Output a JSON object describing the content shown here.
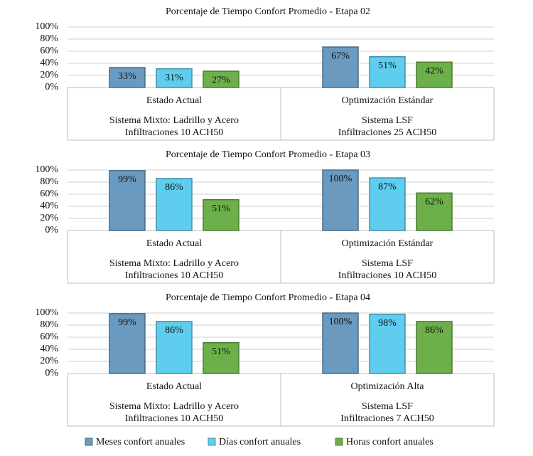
{
  "chart_data": [
    {
      "type": "bar",
      "title": "Porcentaje de Tiempo Confort Promedio - Etapa 02",
      "categories": [
        "Estado Actual",
        "Optimización Estándar"
      ],
      "category_details": [
        [
          "Sistema Mixto: Ladrillo y Acero",
          "Infiltraciones 10 ACH50"
        ],
        [
          "Sistema LSF",
          "Infiltraciones 25 ACH50"
        ]
      ],
      "series": [
        {
          "name": "Meses confort anuales",
          "color": "#6a9ac0",
          "values": [
            33,
            67
          ],
          "value_labels": [
            "33%",
            "67%"
          ]
        },
        {
          "name": "Días confort anuales",
          "color": "#5fcdee",
          "values": [
            31,
            51
          ],
          "value_labels": [
            "31%",
            "51%"
          ]
        },
        {
          "name": "Horas confort anuales",
          "color": "#6cb04a",
          "values": [
            27,
            42
          ],
          "value_labels": [
            "27%",
            "42%"
          ]
        }
      ],
      "ylim": [
        0,
        100
      ],
      "yticks": [
        {
          "value": 0,
          "label": "0%"
        },
        {
          "value": 20,
          "label": "20%"
        },
        {
          "value": 40,
          "label": "40%"
        },
        {
          "value": 60,
          "label": "60%"
        },
        {
          "value": 80,
          "label": "80%"
        },
        {
          "value": 100,
          "label": "100%"
        }
      ],
      "grid": true
    },
    {
      "type": "bar",
      "title": "Porcentaje de Tiempo Confort Promedio - Etapa 03",
      "categories": [
        "Estado Actual",
        "Optimización Estándar"
      ],
      "category_details": [
        [
          "Sistema Mixto: Ladrillo y Acero",
          "Infiltraciones 10 ACH50"
        ],
        [
          "Sistema LSF",
          "Infiltraciones 10 ACH50"
        ]
      ],
      "series": [
        {
          "color": "#6a9ac0",
          "values": [
            99,
            100
          ],
          "value_labels": [
            "99%",
            "100%"
          ]
        },
        {
          "color": "#5fcdee",
          "values": [
            86,
            87
          ],
          "value_labels": [
            "86%",
            "87%"
          ]
        },
        {
          "color": "#6cb04a",
          "values": [
            51,
            62
          ],
          "value_labels": [
            "51%",
            "62%"
          ]
        }
      ],
      "ylim": [
        0,
        100
      ],
      "yticks": [
        {
          "value": 0,
          "label": "0%"
        },
        {
          "value": 20,
          "label": "20%"
        },
        {
          "value": 40,
          "label": "40%"
        },
        {
          "value": 60,
          "label": "60%"
        },
        {
          "value": 80,
          "label": "80%"
        },
        {
          "value": 100,
          "label": "100%"
        }
      ],
      "grid": true
    },
    {
      "type": "bar",
      "title": "Porcentaje de Tiempo Confort Promedio - Etapa 04",
      "categories": [
        "Estado Actual",
        "Optimización Alta"
      ],
      "category_details": [
        [
          "Sistema Mixto: Ladrillo y Acero",
          "Infiltraciones 10 ACH50"
        ],
        [
          "Sistema LSF",
          "Infiltraciones 7 ACH50"
        ]
      ],
      "series": [
        {
          "color": "#6a9ac0",
          "values": [
            99,
            100
          ],
          "value_labels": [
            "99%",
            "100%"
          ]
        },
        {
          "color": "#5fcdee",
          "values": [
            86,
            98
          ],
          "value_labels": [
            "86%",
            "98%"
          ]
        },
        {
          "color": "#6cb04a",
          "values": [
            51,
            86
          ],
          "value_labels": [
            "51%",
            "86%"
          ]
        }
      ],
      "ylim": [
        0,
        100
      ],
      "yticks": [
        {
          "value": 0,
          "label": "0%"
        },
        {
          "value": 20,
          "label": "20%"
        },
        {
          "value": 40,
          "label": "40%"
        },
        {
          "value": 60,
          "label": "60%"
        },
        {
          "value": 80,
          "label": "80%"
        },
        {
          "value": 100,
          "label": "100%"
        }
      ],
      "grid": true
    }
  ]
}
